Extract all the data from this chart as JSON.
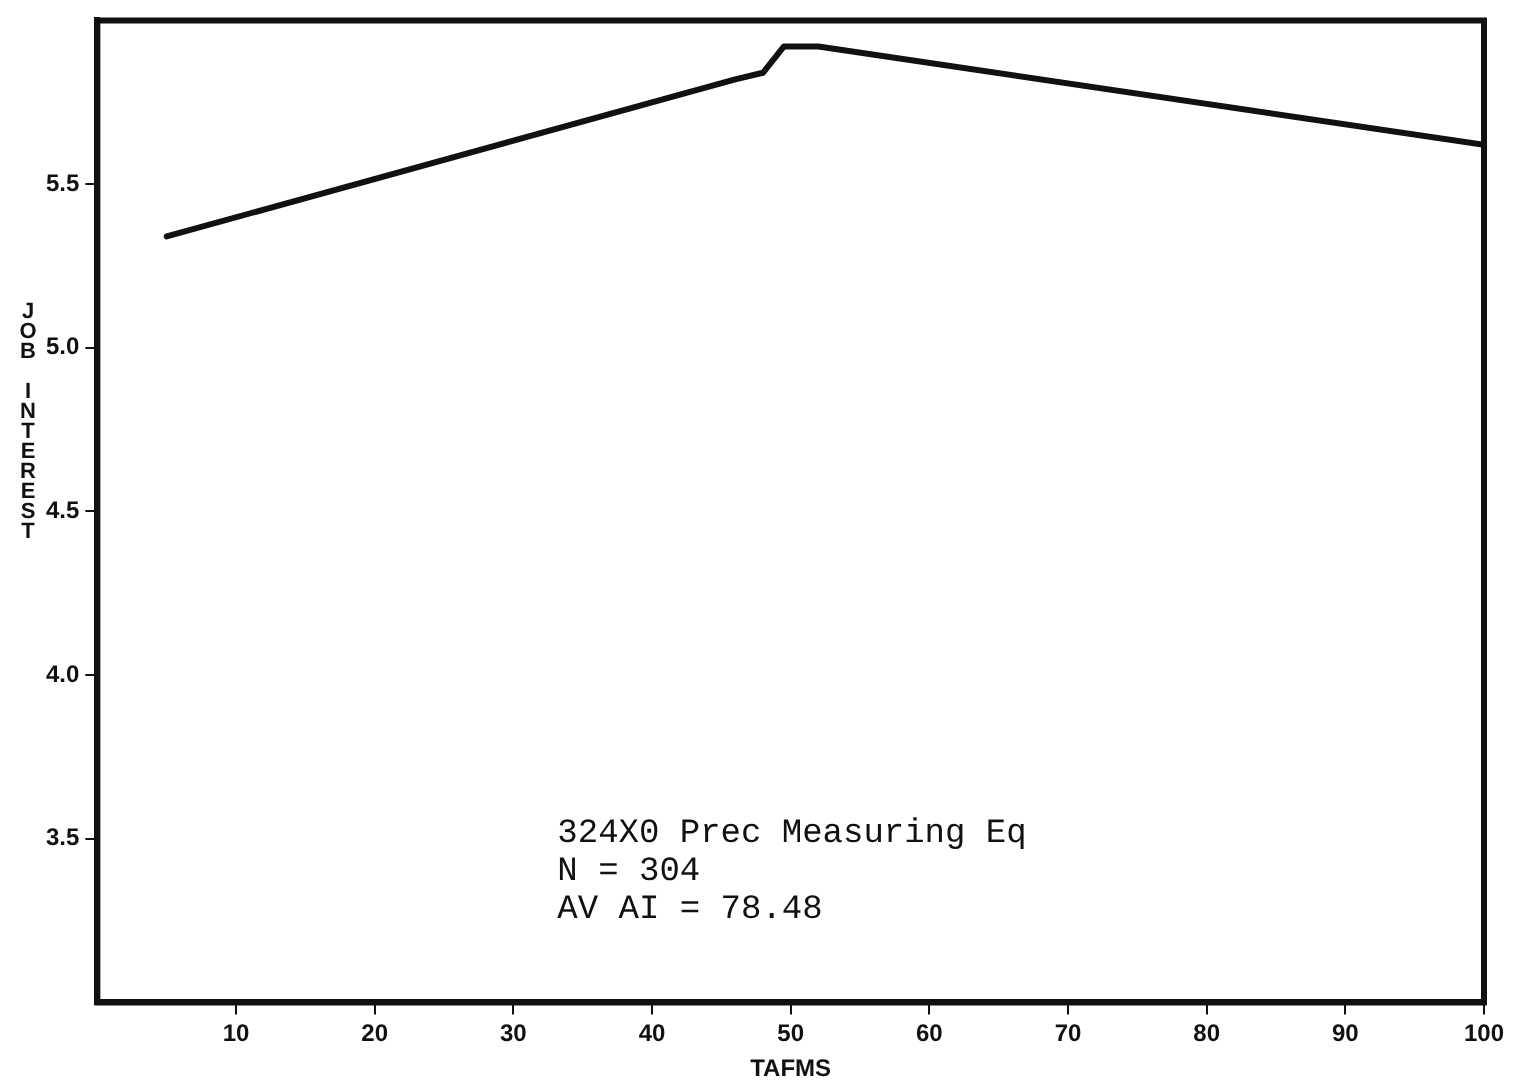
{
  "chart_data": {
    "type": "line",
    "xlabel": "TAFMS",
    "ylabel": "JOB INTEREST",
    "x": [
      5,
      46,
      48,
      49.5,
      52,
      100
    ],
    "series": [
      {
        "color": "#111111",
        "values": [
          5.34,
          5.82,
          5.84,
          5.92,
          5.92,
          5.62
        ]
      }
    ],
    "xlim": [
      0,
      100
    ],
    "xticks": [
      10,
      20,
      30,
      40,
      50,
      60,
      70,
      80,
      90,
      100
    ],
    "ylim": [
      3,
      6
    ],
    "yticks": [
      3.5,
      {
        "value": 4,
        "label": "4.0"
      },
      4.5,
      {
        "value": 5,
        "label": "5.0"
      },
      5.5
    ],
    "annotations": [
      "324X0 Prec Measuring Eq",
      "N = 304",
      "AV AI = 78.48"
    ],
    "grid": false,
    "legend": false,
    "marker": "none",
    "line_style": "solid"
  }
}
